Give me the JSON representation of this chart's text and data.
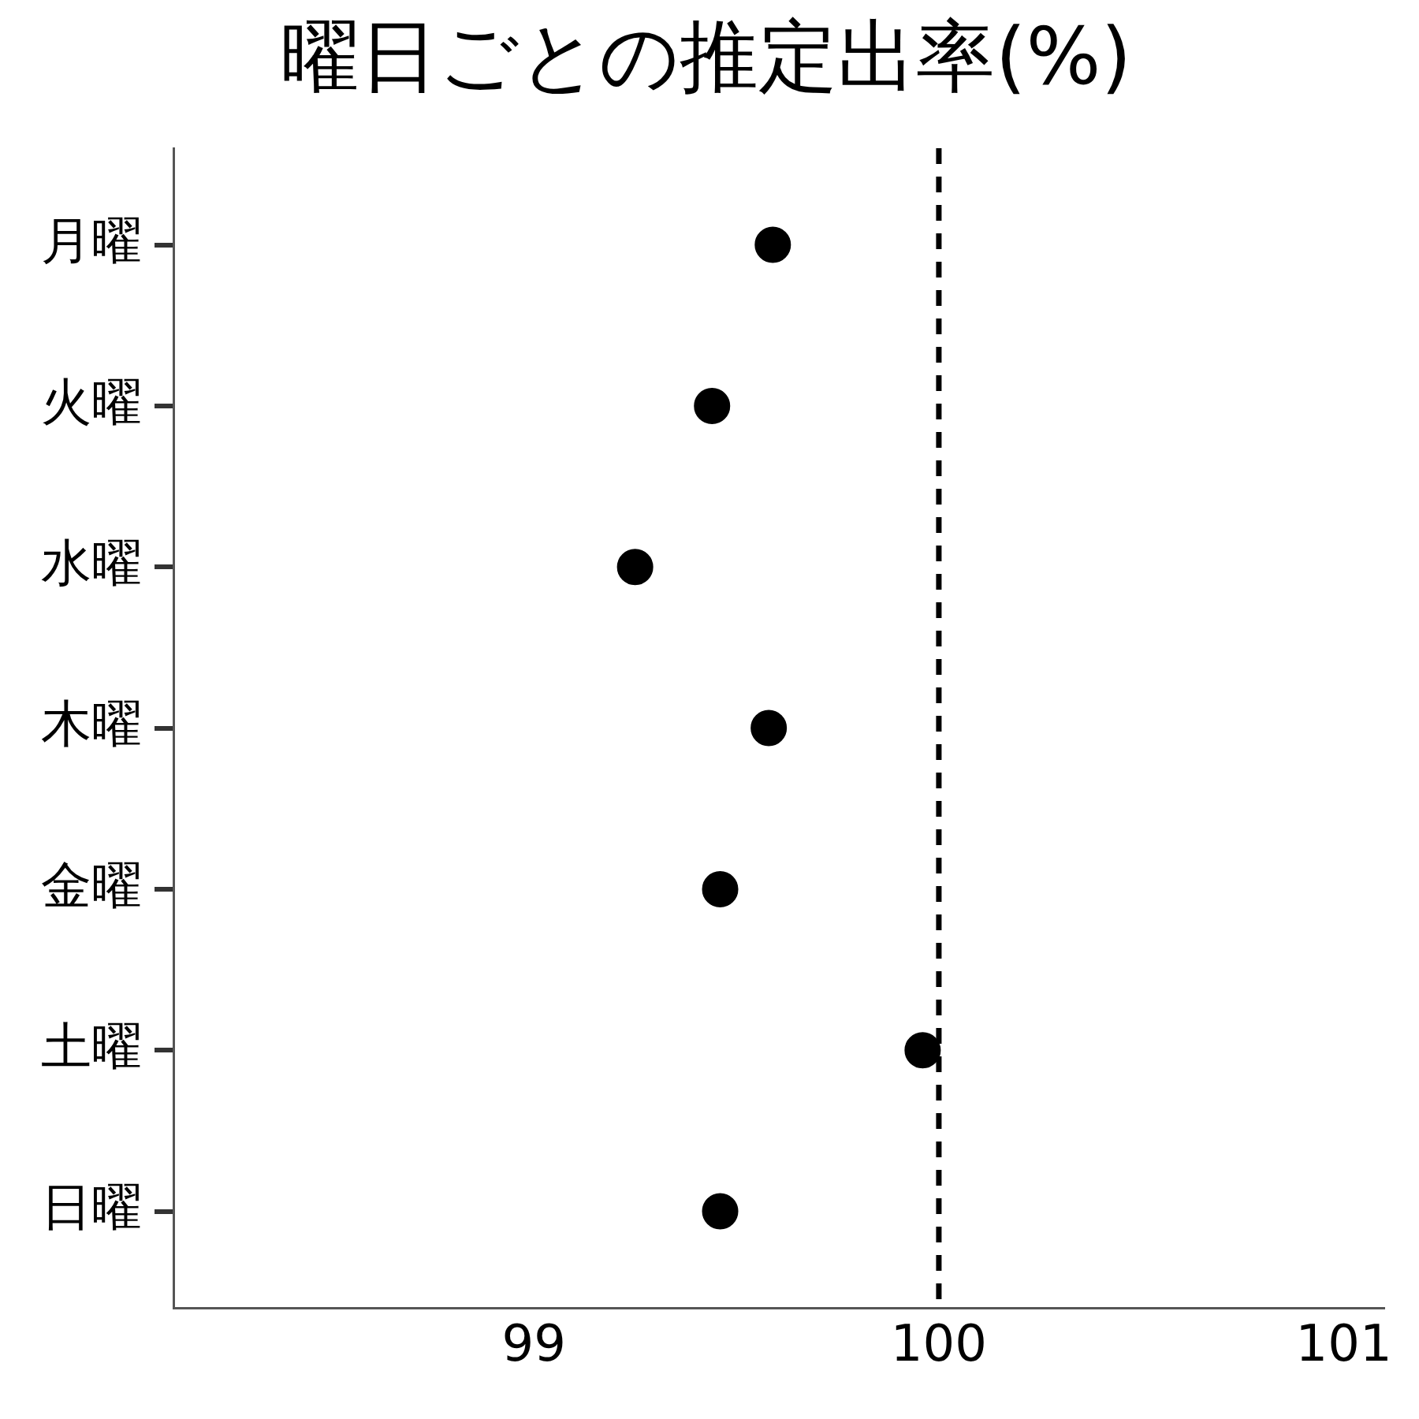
{
  "chart_data": {
    "type": "scatter",
    "title": "曜日ごとの推定出率(%)",
    "categories": [
      "月曜",
      "火曜",
      "水曜",
      "木曜",
      "金曜",
      "土曜",
      "日曜"
    ],
    "series": [
      {
        "color": "#000000",
        "values": [
          99.59,
          99.44,
          99.25,
          99.58,
          99.46,
          99.96,
          99.46
        ]
      }
    ],
    "orientation": "horizontal",
    "xlim": [
      98.11,
      101.1
    ],
    "xticks": [
      99,
      100,
      101
    ],
    "ref_lines": [
      {
        "axis": "x",
        "value": 100,
        "color": "#000000",
        "line_style": "dashed"
      }
    ],
    "marker": "circle",
    "grid": false,
    "legend": false
  }
}
